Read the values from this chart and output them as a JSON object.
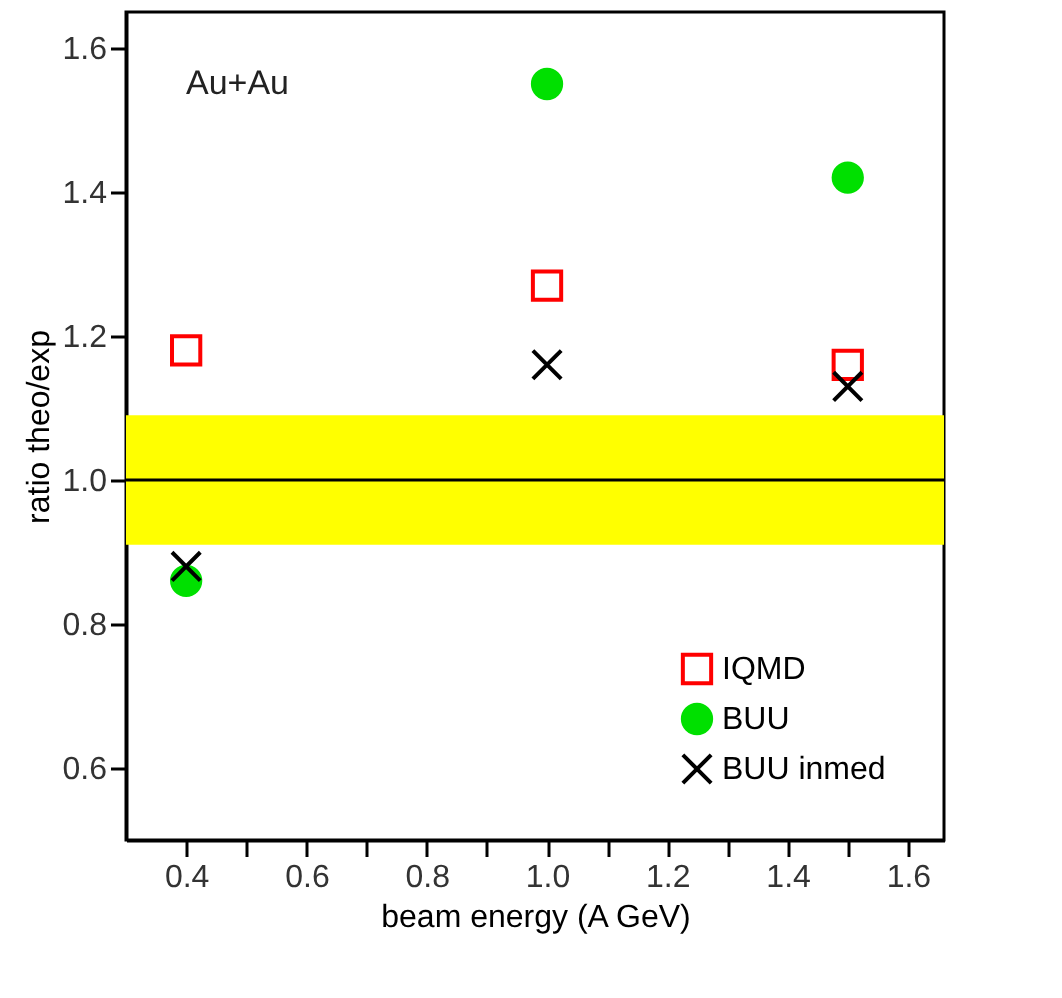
{
  "chart_data": {
    "type": "scatter",
    "xlabel": "beam energy (A GeV)",
    "ylabel": "ratio theo/exp",
    "annotations": [
      "Au+Au"
    ],
    "x": [
      0.4,
      1.0,
      1.5
    ],
    "series": [
      {
        "name": "IQMD",
        "color": "#ff0000",
        "marker": "square",
        "values": [
          1.18,
          1.27,
          1.16
        ]
      },
      {
        "name": "BUU",
        "color": "#00e000",
        "marker": "circle",
        "values": [
          0.86,
          1.55,
          1.42
        ]
      },
      {
        "name": "BUU  inmed",
        "color": "#000000",
        "marker": "cross",
        "values": [
          0.88,
          1.16,
          1.13
        ]
      }
    ],
    "xlim": [
      0.3,
      1.66
    ],
    "ylim": [
      0.5,
      1.65
    ],
    "xticks": [
      0.4,
      {
        "value": 0.5,
        "label": null
      },
      0.6,
      {
        "value": 0.7,
        "label": null
      },
      0.8,
      {
        "value": 0.9,
        "label": null
      },
      {
        "value": 1.0,
        "label": "1.0"
      },
      {
        "value": 1.1,
        "label": null
      },
      1.2,
      {
        "value": 1.3,
        "label": null
      },
      1.4,
      {
        "value": 1.5,
        "label": null
      },
      1.6
    ],
    "yticks": [
      0.6,
      0.8,
      {
        "value": 1.0,
        "label": "1.0"
      },
      1.2,
      1.4,
      1.6
    ],
    "ref_lines": [
      {
        "axis": "y",
        "value": 1.0,
        "color": "#000000"
      }
    ],
    "bands": [
      {
        "axis": "y",
        "from": 0.91,
        "to": 1.09,
        "color": "#ffff00"
      }
    ],
    "grid": false,
    "legend": "bottom right"
  }
}
